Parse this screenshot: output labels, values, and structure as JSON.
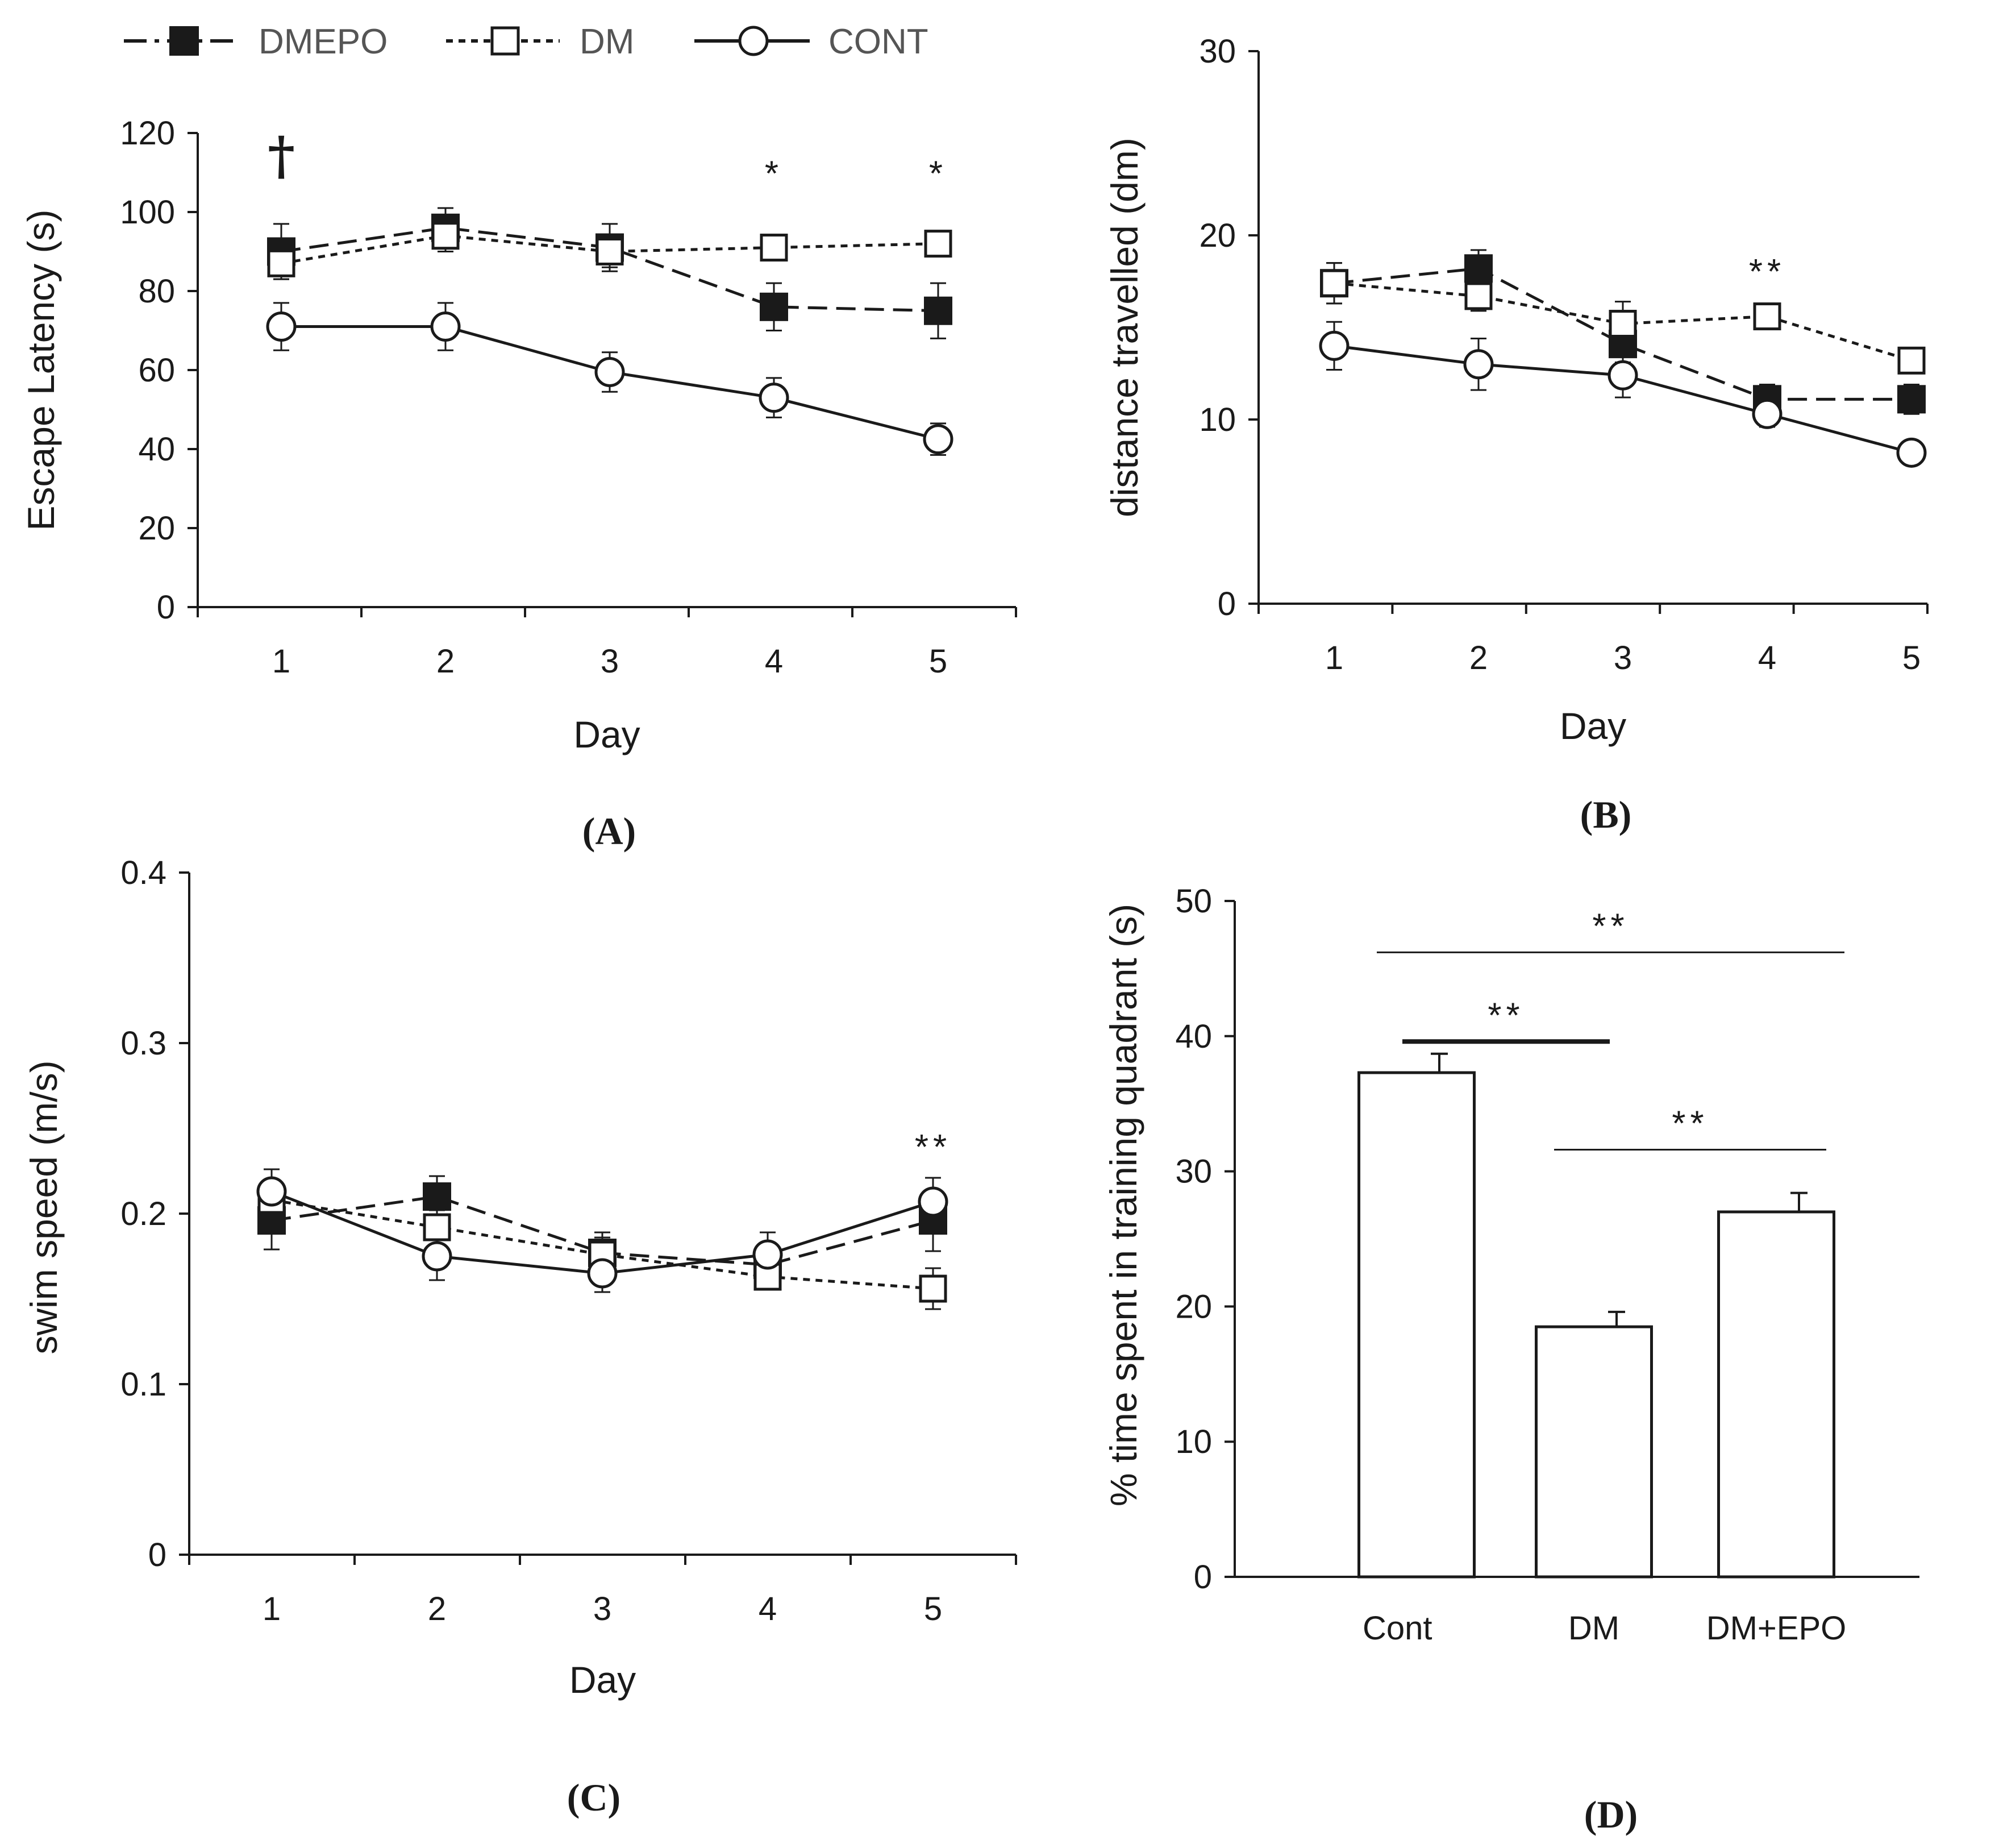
{
  "legend": [
    {
      "name": "DMEPO",
      "line": "dashed",
      "marker": "filled-square"
    },
    {
      "name": "DM",
      "line": "dotted",
      "marker": "open-square"
    },
    {
      "name": "CONT",
      "line": "solid",
      "marker": "open-circle"
    }
  ],
  "colors": {
    "ink": "#1a1a1a",
    "legend_text": "#555555",
    "background": "#ffffff"
  },
  "chart_data": [
    {
      "id": "A",
      "type": "line",
      "panel_label": "(A)",
      "xlabel": "Day",
      "ylabel": "Escape Latency (s)",
      "x": [
        1,
        2,
        3,
        4,
        5
      ],
      "ylim": [
        0,
        120
      ],
      "yticks": [
        "0",
        "20",
        "40",
        "60",
        "80",
        "100",
        "120"
      ],
      "series": [
        {
          "name": "DMEPO",
          "values": [
            90,
            96,
            91,
            76,
            75
          ],
          "errors": [
            7,
            5,
            6,
            6,
            7
          ]
        },
        {
          "name": "DM",
          "values": [
            87,
            94,
            90,
            91,
            92
          ],
          "errors": [
            4,
            4,
            4,
            3,
            3
          ]
        },
        {
          "name": "CONT",
          "values": [
            71,
            71,
            59.5,
            53,
            42.5
          ],
          "errors": [
            6,
            6,
            5,
            5,
            4
          ]
        }
      ],
      "annotations": [
        {
          "x": 1,
          "y": 114,
          "text": "†"
        },
        {
          "x": 4,
          "y": 111,
          "text": "*"
        },
        {
          "x": 5,
          "y": 111,
          "text": "*"
        }
      ]
    },
    {
      "id": "B",
      "type": "line",
      "panel_label": "(B)",
      "xlabel": "Day",
      "ylabel": "distance travelled  (dm)",
      "x": [
        1,
        2,
        3,
        4,
        5
      ],
      "ylim": [
        0,
        30
      ],
      "yticks": [
        "0",
        "10",
        "20",
        "30"
      ],
      "series": [
        {
          "name": "DMEPO",
          "values": [
            17.4,
            18.2,
            14.1,
            11.1,
            11.1
          ],
          "errors": [
            1.1,
            1.0,
            1.0,
            0.8,
            0.8
          ]
        },
        {
          "name": "DM",
          "values": [
            17.4,
            16.7,
            15.2,
            15.6,
            13.2
          ],
          "errors": [
            1.1,
            0.8,
            1.2,
            0.7,
            0.5
          ]
        },
        {
          "name": "CONT",
          "values": [
            14.0,
            13.0,
            12.4,
            10.3,
            8.2
          ],
          "errors": [
            1.3,
            1.4,
            1.2,
            0.7,
            0.5
          ]
        }
      ],
      "annotations": [
        {
          "x": 4,
          "y": 18.3,
          "text": "**"
        }
      ]
    },
    {
      "id": "C",
      "type": "line",
      "panel_label": "(C)",
      "xlabel": "Day",
      "ylabel": "swim speed (m/s)",
      "x": [
        1,
        2,
        3,
        4,
        5
      ],
      "ylim": [
        0,
        0.4
      ],
      "yticks": [
        "0",
        "0.1",
        "0.2",
        "0.3",
        "0.4"
      ],
      "series": [
        {
          "name": "DMEPO",
          "values": [
            0.196,
            0.21,
            0.177,
            0.17,
            0.196
          ],
          "errors": [
            0.017,
            0.012,
            0.012,
            0.012,
            0.018
          ]
        },
        {
          "name": "DM",
          "values": [
            0.208,
            0.192,
            0.176,
            0.163,
            0.156
          ],
          "errors": [
            0.012,
            0.01,
            0.01,
            0.007,
            0.012
          ]
        },
        {
          "name": "CONT",
          "values": [
            0.213,
            0.175,
            0.165,
            0.176,
            0.207
          ],
          "errors": [
            0.013,
            0.014,
            0.011,
            0.013,
            0.014
          ]
        }
      ],
      "annotations": [
        {
          "x": 5,
          "y": 0.242,
          "text": "**"
        }
      ]
    },
    {
      "id": "D",
      "type": "bar",
      "panel_label": "(D)",
      "xlabel": "",
      "ylabel": "%  time spent in training quadrant  (s)",
      "categories": [
        "Cont",
        "DM",
        "DM+EPO"
      ],
      "values": [
        37.3,
        18.5,
        27.0
      ],
      "errors": [
        1.4,
        1.1,
        1.4
      ],
      "ylim": [
        0,
        50
      ],
      "yticks": [
        "0",
        "10",
        "20",
        "30",
        "40",
        "50"
      ],
      "significance": [
        {
          "from": 0,
          "to": 1,
          "y": 39.6,
          "text": "**",
          "bold": true
        },
        {
          "from": 0,
          "to": 2,
          "y": 46.2,
          "text": "**",
          "bold": false
        },
        {
          "from": 1,
          "to": 2,
          "y": 31.6,
          "text": "**",
          "bold": false
        }
      ]
    }
  ]
}
